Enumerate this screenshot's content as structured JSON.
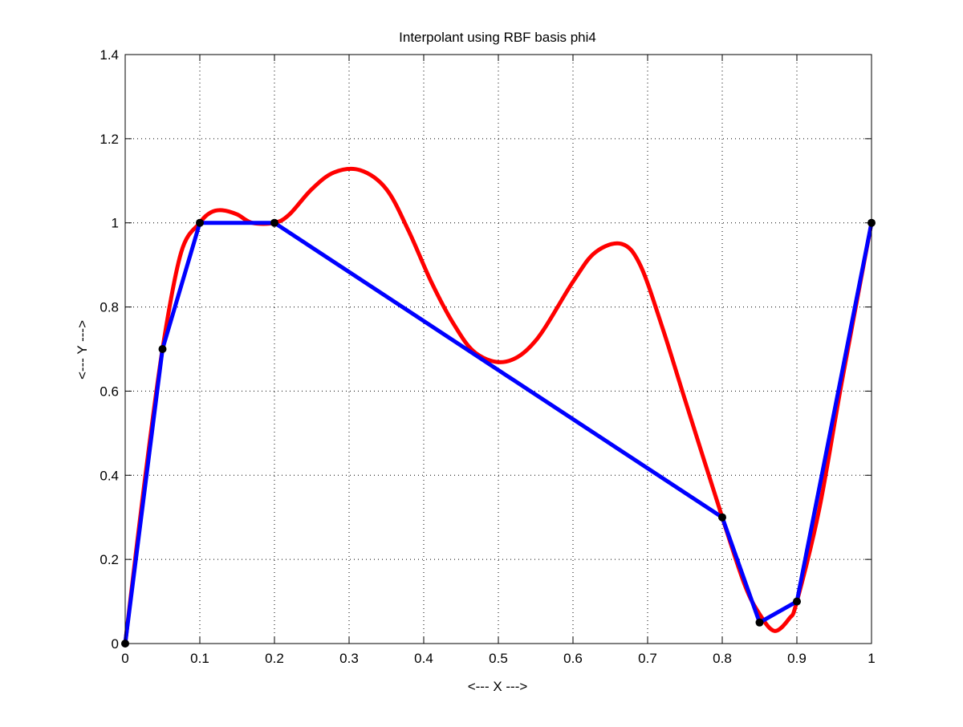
{
  "chart_data": {
    "type": "line",
    "title": "Interpolant using RBF basis phi4",
    "xlabel": "<--- X --->",
    "ylabel": "<--- Y --->",
    "xlim": [
      0,
      1
    ],
    "ylim": [
      0,
      1.4
    ],
    "xticks": [
      0,
      0.1,
      0.2,
      0.3,
      0.4,
      0.5,
      0.6,
      0.7,
      0.8,
      0.9,
      1
    ],
    "xtick_labels": [
      "0",
      "0.1",
      "0.2",
      "0.3",
      "0.4",
      "0.5",
      "0.6",
      "0.7",
      "0.8",
      "0.9",
      "1"
    ],
    "yticks": [
      0,
      0.2,
      0.4,
      0.6,
      0.8,
      1,
      1.2,
      1.4
    ],
    "ytick_labels": [
      "0",
      "0.2",
      "0.4",
      "0.6",
      "0.8",
      "1",
      "1.2",
      "1.4"
    ],
    "grid": true,
    "series": [
      {
        "color": "#ff0000",
        "style": "smooth-line",
        "x": [
          0,
          0.025,
          0.05,
          0.075,
          0.1,
          0.115,
          0.13,
          0.15,
          0.17,
          0.2,
          0.22,
          0.25,
          0.28,
          0.315,
          0.35,
          0.38,
          0.41,
          0.44,
          0.47,
          0.51,
          0.55,
          0.6,
          0.63,
          0.665,
          0.69,
          0.72,
          0.75,
          0.8,
          0.83,
          0.85,
          0.87,
          0.89,
          0.9,
          0.93,
          0.96,
          1
        ],
        "y": [
          0,
          0.37,
          0.7,
          0.93,
          1.0,
          1.025,
          1.03,
          1.02,
          1.0,
          1.0,
          1.02,
          1.08,
          1.12,
          1.125,
          1.08,
          0.98,
          0.86,
          0.76,
          0.69,
          0.67,
          0.72,
          0.86,
          0.93,
          0.95,
          0.9,
          0.75,
          0.58,
          0.3,
          0.14,
          0.07,
          0.03,
          0.06,
          0.1,
          0.32,
          0.62,
          1.0
        ]
      },
      {
        "color": "#0000ff",
        "style": "line",
        "x": [
          0,
          0.05,
          0.1,
          0.2,
          0.8,
          0.85,
          0.9,
          1
        ],
        "y": [
          0,
          0.7,
          1.0,
          1.0,
          0.3,
          0.05,
          0.1,
          1.0
        ]
      }
    ],
    "markers": {
      "color": "#000000",
      "x": [
        0,
        0.05,
        0.1,
        0.2,
        0.8,
        0.85,
        0.9,
        1
      ],
      "y": [
        0,
        0.7,
        1.0,
        1.0,
        0.3,
        0.05,
        0.1,
        1.0
      ]
    }
  }
}
